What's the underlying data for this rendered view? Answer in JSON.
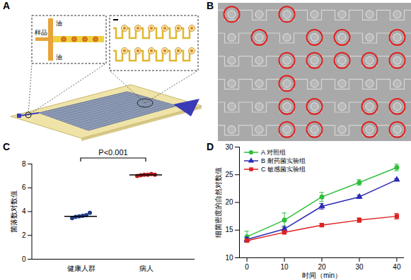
{
  "diagram": {
    "panel_label": "A",
    "oil_top": "油",
    "sample": "样品",
    "oil_bottom": "油"
  },
  "image": {
    "panel_label": "B",
    "rows": 6,
    "columns": 7,
    "positive": [
      [
        0,
        0
      ],
      [
        0,
        2
      ],
      [
        1,
        1
      ],
      [
        1,
        3
      ],
      [
        1,
        4
      ],
      [
        1,
        6
      ],
      [
        2,
        2
      ],
      [
        2,
        3
      ],
      [
        2,
        4
      ],
      [
        2,
        5
      ],
      [
        2,
        6
      ],
      [
        3,
        2
      ],
      [
        4,
        2
      ],
      [
        4,
        3
      ],
      [
        4,
        5
      ],
      [
        4,
        6
      ],
      [
        5,
        2
      ],
      [
        5,
        3
      ],
      [
        5,
        5
      ],
      [
        5,
        6
      ]
    ]
  },
  "chart_data": [
    {
      "panel_label": "C",
      "type": "dot_plot",
      "categories": [
        "健康人群",
        "病人"
      ],
      "values": [
        [
          3.45,
          3.55,
          3.6,
          3.65,
          3.7,
          3.9
        ],
        [
          7.0,
          7.05,
          7.1,
          7.1,
          7.15,
          7.1
        ]
      ],
      "mean": [
        3.6,
        7.08
      ],
      "colors": [
        "#1f3c88",
        "#b01c1c"
      ],
      "y_label": "菌落数对数值",
      "ylim": [
        0,
        8
      ],
      "yticks": [
        0,
        2,
        4,
        6,
        8
      ],
      "annotation": "P<0.001"
    },
    {
      "panel_label": "D",
      "type": "line",
      "x_label": "时间（min）",
      "y_label": "细菌密度的自然对数值",
      "x": [
        0,
        10,
        20,
        30,
        40
      ],
      "xlim": [
        -2,
        42
      ],
      "xticks": [
        0,
        10,
        20,
        30,
        40
      ],
      "ylim": [
        10,
        30
      ],
      "yticks": [
        10,
        15,
        20,
        25,
        30
      ],
      "legend": "top-left",
      "series": [
        {
          "name": "A 对照组",
          "color": "#2fbf3a",
          "marker": "circle",
          "values": [
            13.8,
            16.8,
            21.0,
            23.6,
            26.3
          ],
          "errors": [
            1.0,
            1.3,
            0.8,
            0.5,
            0.6
          ]
        },
        {
          "name": "B 耐药菌实验组",
          "color": "#2b2bb5",
          "marker": "triangle",
          "values": [
            13.3,
            15.2,
            19.3,
            21.0,
            24.1
          ],
          "errors": [
            0.4,
            0.5,
            0.5,
            0.3,
            0.2
          ]
        },
        {
          "name": "C 敏感菌实验组",
          "color": "#dd2222",
          "marker": "square",
          "values": [
            13.1,
            14.6,
            15.9,
            16.8,
            17.5
          ],
          "errors": [
            0.3,
            0.3,
            0.3,
            0.4,
            0.5
          ]
        }
      ]
    }
  ]
}
